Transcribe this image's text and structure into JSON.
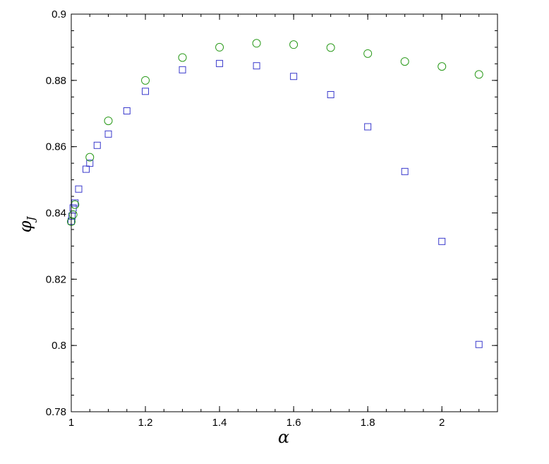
{
  "chart_data": {
    "type": "scatter",
    "xlabel": "α",
    "ylabel": "φ",
    "ylabel_sub": "J",
    "xlim": [
      1,
      2.15
    ],
    "ylim": [
      0.78,
      0.9
    ],
    "xticks": [
      1,
      1.2,
      1.4,
      1.6,
      1.8,
      2
    ],
    "xtick_labels": [
      "1",
      "1.2",
      "1.4",
      "1.6",
      "1.8",
      "2"
    ],
    "yticks": [
      0.78,
      0.8,
      0.82,
      0.84,
      0.86,
      0.88,
      0.9
    ],
    "ytick_labels": [
      "0.78",
      "0.8",
      "0.82",
      "0.84",
      "0.86",
      "0.88",
      "0.9"
    ],
    "grid": false,
    "series": [
      {
        "marker": "square",
        "color": "#3a3acc",
        "x": [
          1.0,
          1.002,
          1.005,
          1.01,
          1.02,
          1.04,
          1.05,
          1.07,
          1.1,
          1.15,
          1.2,
          1.3,
          1.4,
          1.5,
          1.6,
          1.7,
          1.8,
          1.9,
          2.0,
          2.1
        ],
        "y": [
          0.8375,
          0.839,
          0.8415,
          0.843,
          0.8472,
          0.8532,
          0.855,
          0.8604,
          0.8638,
          0.8708,
          0.8767,
          0.8832,
          0.8851,
          0.8844,
          0.8812,
          0.8757,
          0.866,
          0.8525,
          0.8314,
          0.8003
        ]
      },
      {
        "marker": "circle",
        "color": "#2a9a1a",
        "x": [
          1.0,
          1.005,
          1.01,
          1.05,
          1.1,
          1.2,
          1.3,
          1.4,
          1.5,
          1.6,
          1.7,
          1.8,
          1.9,
          2.0,
          2.1
        ],
        "y": [
          0.8374,
          0.8395,
          0.8425,
          0.8568,
          0.8678,
          0.88,
          0.8869,
          0.89,
          0.8912,
          0.8908,
          0.8899,
          0.8881,
          0.8857,
          0.8842,
          0.8818
        ]
      }
    ]
  }
}
